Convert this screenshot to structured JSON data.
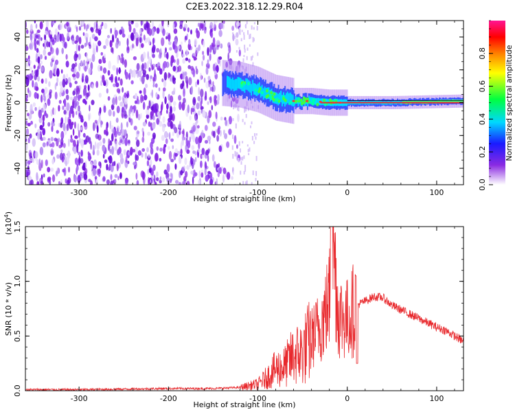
{
  "title": "C2E3.2022.318.12.29.R04",
  "colors": {
    "snr_line": "#e8282c",
    "signal_core": "#e8282c",
    "noise": "#7a1ee6"
  },
  "chart_data": [
    {
      "type": "heatmap",
      "name": "spectrogram",
      "xlabel": "Height of straight line (km)",
      "ylabel": "Frequency (Hz)",
      "xlim": [
        -360,
        130
      ],
      "ylim": [
        -50,
        50
      ],
      "x_ticks": [
        -300,
        -200,
        -100,
        0,
        100
      ],
      "y_ticks": [
        -40,
        -20,
        0,
        20,
        40
      ],
      "colorbar": {
        "label": "Normalized spectral amplitude",
        "range": [
          0.0,
          1.0
        ],
        "ticks": [
          "0.0",
          "0.2",
          "0.4",
          "0.6",
          "0.8"
        ],
        "colormap": "rainbow (white, purple, blue, cyan, green, yellow, orange, red, magenta)"
      },
      "features": {
        "noise_region_x": [
          -360,
          -100
        ],
        "signal_onset_x": -140,
        "signal_center_freq_hz": 0,
        "signal_trace": [
          {
            "x": -140,
            "y": 12
          },
          {
            "x": -120,
            "y": 11
          },
          {
            "x": -100,
            "y": 8
          },
          {
            "x": -80,
            "y": 3
          },
          {
            "x": -60,
            "y": 1
          },
          {
            "x": -40,
            "y": 1
          },
          {
            "x": -20,
            "y": 0
          },
          {
            "x": 0,
            "y": 0
          },
          {
            "x": 50,
            "y": 0
          },
          {
            "x": 130,
            "y": 1
          }
        ]
      }
    },
    {
      "type": "line",
      "name": "snr",
      "xlabel": "Height of straight line (km)",
      "ylabel": "SNR (10 * v/v)",
      "y_multiplier": "(x10^4)",
      "xlim": [
        -360,
        130
      ],
      "ylim": [
        0,
        1.5
      ],
      "x_ticks": [
        -300,
        -200,
        -100,
        0,
        100
      ],
      "y_ticks": [
        "0.0",
        "0.5",
        "1.0",
        "1.5"
      ],
      "series": [
        {
          "x": [
            -360,
            -300,
            -200,
            -150,
            -120,
            -100,
            -90,
            -80,
            -70,
            -60,
            -50,
            -40,
            -30,
            -20,
            -17,
            -10,
            0,
            10,
            20,
            30,
            40,
            50,
            60,
            70,
            80,
            90,
            100,
            110,
            120,
            130
          ],
          "y": [
            0.01,
            0.01,
            0.02,
            0.02,
            0.03,
            0.06,
            0.12,
            0.2,
            0.22,
            0.32,
            0.35,
            0.48,
            0.6,
            0.82,
            1.55,
            0.7,
            0.65,
            0.78,
            0.82,
            0.86,
            0.85,
            0.78,
            0.74,
            0.7,
            0.66,
            0.62,
            0.58,
            0.55,
            0.5,
            0.45
          ]
        }
      ]
    }
  ]
}
